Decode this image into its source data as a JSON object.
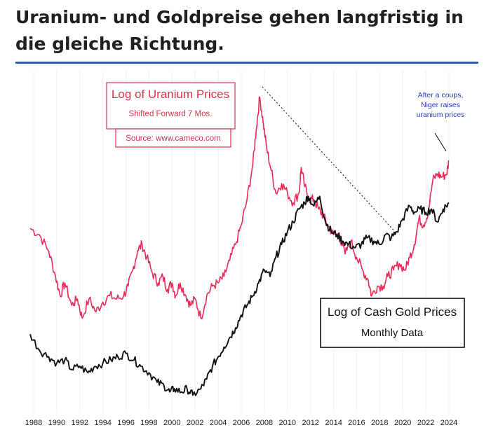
{
  "headline": "Uranium- und Goldpreise gehen langfristig in die gleiche Richtung.",
  "colors": {
    "uranium": "#ec2a55",
    "gold": "#111111",
    "rule": "#2f5aa8",
    "annotation": "#2a3ec0"
  },
  "chart_data": {
    "type": "line",
    "xlabel": "",
    "ylabel": "",
    "xlim": [
      1987.5,
      2024.5
    ],
    "ylim": [
      0,
      100
    ],
    "x_ticks": [
      "1988",
      "1990",
      "1992",
      "1994",
      "1996",
      "1998",
      "2000",
      "2002",
      "2004",
      "2006",
      "2008",
      "2010",
      "2012",
      "2014",
      "2016",
      "2018",
      "2020",
      "2022",
      "2024"
    ],
    "uranium_box": {
      "title": "Log of Uranium Prices",
      "subtitle": "Shifted Forward 7 Mos.",
      "source": "Source: www.cameco.com"
    },
    "gold_box": {
      "title": "Log of Cash Gold Prices",
      "subtitle": "Monthly Data"
    },
    "annotation": [
      "After a coups,",
      "Niger raises",
      "uranium prices"
    ],
    "series": [
      {
        "name": "Log of Uranium Prices (shifted forward 7 mos.)",
        "x": [
          1987.7,
          1988.5,
          1989.3,
          1989.9,
          1990.3,
          1990.7,
          1991.3,
          1991.8,
          1992.2,
          1992.8,
          1993.4,
          1994,
          1994.6,
          1995.2,
          1995.8,
          1996.2,
          1996.6,
          1997,
          1997.4,
          1997.8,
          1998.3,
          1998.8,
          1999.2,
          1999.6,
          2000,
          2000.3,
          2000.7,
          2001.2,
          2001.6,
          2002,
          2002.5,
          2003,
          2003.5,
          2004,
          2004.5,
          2005,
          2005.5,
          2006,
          2006.5,
          2007,
          2007.3,
          2007.6,
          2007.9,
          2008.2,
          2008.6,
          2009,
          2009.5,
          2010,
          2010.5,
          2011,
          2011.2,
          2011.5,
          2011.9,
          2012.3,
          2012.7,
          2013.1,
          2013.5,
          2014,
          2014.5,
          2015,
          2015.5,
          2016,
          2016.5,
          2017,
          2017.3,
          2017.8,
          2018.3,
          2018.7,
          2019.2,
          2019.7,
          2020.2,
          2020.6,
          2021,
          2021.4,
          2021.8,
          2022.2,
          2022.6,
          2023,
          2023.4,
          2023.8,
          2024
        ],
        "values": [
          55,
          53,
          48,
          40,
          34,
          38,
          31,
          33,
          27,
          33,
          29,
          32,
          34,
          33,
          34,
          37,
          42,
          48,
          50,
          46,
          41,
          38,
          40,
          36,
          38,
          34,
          38,
          34,
          31,
          33,
          27,
          34,
          37,
          38,
          40,
          45,
          50,
          56,
          64,
          75,
          86,
          96,
          88,
          80,
          73,
          66,
          69,
          66,
          63,
          66,
          74,
          68,
          64,
          64,
          61,
          59,
          56,
          53,
          53,
          47,
          51,
          46,
          42,
          39,
          34,
          37,
          37,
          40,
          42,
          44,
          42,
          46,
          50,
          58,
          56,
          60,
          70,
          72,
          71,
          72,
          76
        ]
      },
      {
        "name": "Log of Cash Gold Prices (monthly data)",
        "x": [
          1987.7,
          1988.5,
          1989.3,
          1990,
          1990.7,
          1991.3,
          1992,
          1992.7,
          1993.3,
          1994,
          1994.7,
          1995.3,
          1996,
          1996.7,
          1997.3,
          1998,
          1998.7,
          1999.3,
          1999.8,
          2000.2,
          2000.8,
          2001.3,
          2001.8,
          2002.5,
          2003,
          2003.5,
          2004,
          2004.5,
          2005,
          2005.5,
          2006,
          2006.5,
          2007,
          2007.5,
          2008,
          2008.5,
          2009,
          2009.5,
          2010,
          2010.5,
          2011,
          2011.5,
          2011.8,
          2012.3,
          2012.8,
          2013.3,
          2013.8,
          2014.3,
          2014.8,
          2015.3,
          2015.9,
          2016.4,
          2016.9,
          2017.5,
          2018,
          2018.5,
          2019,
          2019.5,
          2020,
          2020.6,
          2021,
          2021.5,
          2022,
          2022.5,
          2023,
          2023.5,
          2024
        ],
        "values": [
          22,
          17,
          15,
          13,
          14,
          11,
          12,
          10,
          12,
          13,
          14,
          15,
          16,
          14,
          12,
          10,
          7,
          6,
          4,
          5,
          4,
          5,
          3,
          5,
          8,
          12,
          15,
          18,
          21,
          24,
          28,
          31,
          34,
          38,
          42,
          40,
          46,
          50,
          54,
          57,
          61,
          63,
          65,
          62,
          65,
          57,
          54,
          53,
          51,
          50,
          49,
          50,
          52,
          51,
          50,
          53,
          52,
          54,
          58,
          62,
          60,
          61,
          60,
          61,
          57,
          61,
          63
        ]
      }
    ]
  }
}
